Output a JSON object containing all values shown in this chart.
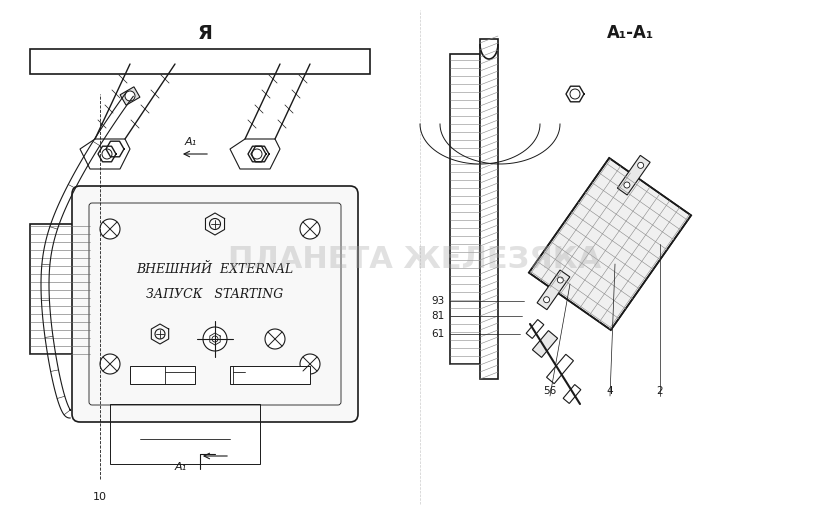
{
  "bg_color": "#ffffff",
  "line_color": "#1a1a1a",
  "hatch_color": "#1a1a1a",
  "title_left": "Я",
  "title_right": "A₁-A₁",
  "label_A1_top": "A₁",
  "label_A1_bottom": "A₁",
  "label_10": "10",
  "label_61": "61",
  "label_81": "81",
  "label_93": "93",
  "label_56": "56",
  "label_4": "4",
  "label_2": "2",
  "text_line1": "ВНЕШНИЙ  EXTERNAL",
  "text_line2": "ЗАПУСК   STARTING",
  "watermark": "ПЛАНЕТА ЖЕЛЕЗЯКА"
}
